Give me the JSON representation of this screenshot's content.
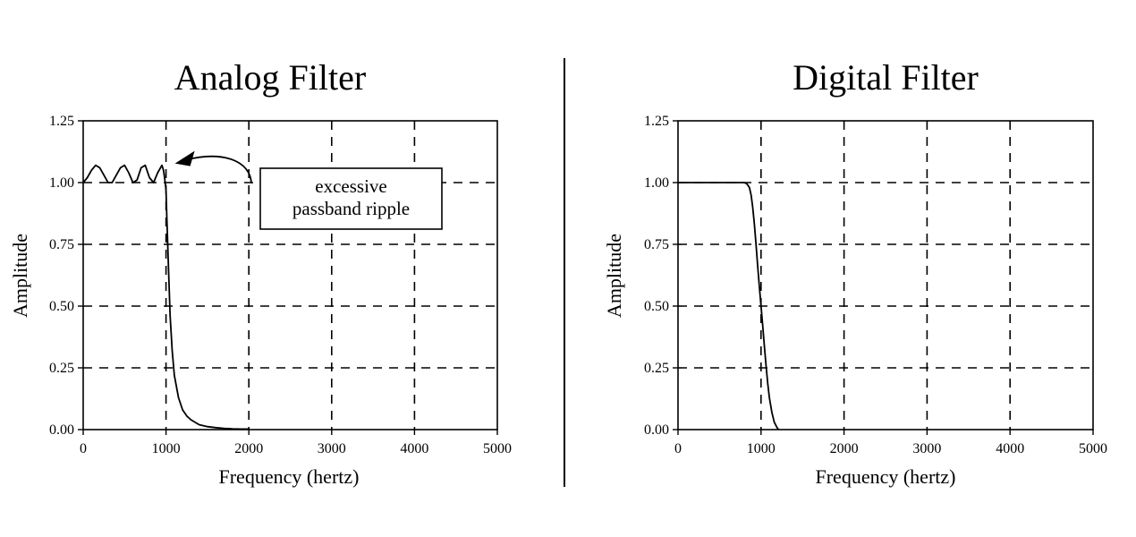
{
  "chart_data": [
    {
      "type": "line",
      "title": "Analog Filter",
      "xlabel": "Frequency (hertz)",
      "ylabel": "Amplitude",
      "xlim": [
        0,
        5000
      ],
      "ylim": [
        0,
        1.25
      ],
      "xticks": [
        "0",
        "1000",
        "2000",
        "3000",
        "4000",
        "5000"
      ],
      "yticks": [
        "0.00",
        "0.25",
        "0.50",
        "0.75",
        "1.00",
        "1.25"
      ],
      "grid": true,
      "grid_style": "dashed",
      "annotation": {
        "lines": [
          "excessive",
          "passband ripple"
        ],
        "points_to": {
          "x": 1000,
          "y": 1.07
        }
      },
      "series": [
        {
          "x": [
            0,
            50,
            100,
            150,
            200,
            250,
            300,
            350,
            400,
            450,
            500,
            550,
            600,
            650,
            700,
            750,
            800,
            850,
            900,
            950,
            970,
            990,
            1000,
            1010,
            1030,
            1050,
            1075,
            1100,
            1150,
            1200,
            1250,
            1300,
            1400,
            1500,
            1600,
            1700,
            1800,
            1900,
            2000
          ],
          "y": [
            1.0,
            1.02,
            1.05,
            1.07,
            1.06,
            1.03,
            1.0,
            1.0,
            1.03,
            1.06,
            1.07,
            1.04,
            1.0,
            1.01,
            1.06,
            1.07,
            1.02,
            1.0,
            1.04,
            1.07,
            1.05,
            1.0,
            0.97,
            0.86,
            0.65,
            0.46,
            0.32,
            0.22,
            0.13,
            0.08,
            0.055,
            0.04,
            0.02,
            0.012,
            0.008,
            0.005,
            0.003,
            0.002,
            0.002
          ]
        }
      ]
    },
    {
      "type": "line",
      "title": "Digital Filter",
      "xlabel": "Frequency (hertz)",
      "ylabel": "Amplitude",
      "xlim": [
        0,
        5000
      ],
      "ylim": [
        0,
        1.25
      ],
      "xticks": [
        "0",
        "1000",
        "2000",
        "3000",
        "4000",
        "5000"
      ],
      "yticks": [
        "0.00",
        "0.25",
        "0.50",
        "0.75",
        "1.00",
        "1.25"
      ],
      "grid": true,
      "grid_style": "dashed",
      "series": [
        {
          "x": [
            0,
            200,
            400,
            600,
            800,
            830,
            860,
            880,
            900,
            920,
            940,
            960,
            980,
            1000,
            1020,
            1040,
            1060,
            1080,
            1100,
            1130,
            1160,
            1190,
            1210
          ],
          "y": [
            1.0,
            1.0,
            1.0,
            1.0,
            1.0,
            0.995,
            0.98,
            0.95,
            0.9,
            0.83,
            0.75,
            0.66,
            0.58,
            0.5,
            0.42,
            0.34,
            0.26,
            0.19,
            0.13,
            0.07,
            0.03,
            0.01,
            0.0
          ]
        }
      ]
    }
  ],
  "colors": {
    "line": "#000000",
    "background": "#ffffff"
  }
}
